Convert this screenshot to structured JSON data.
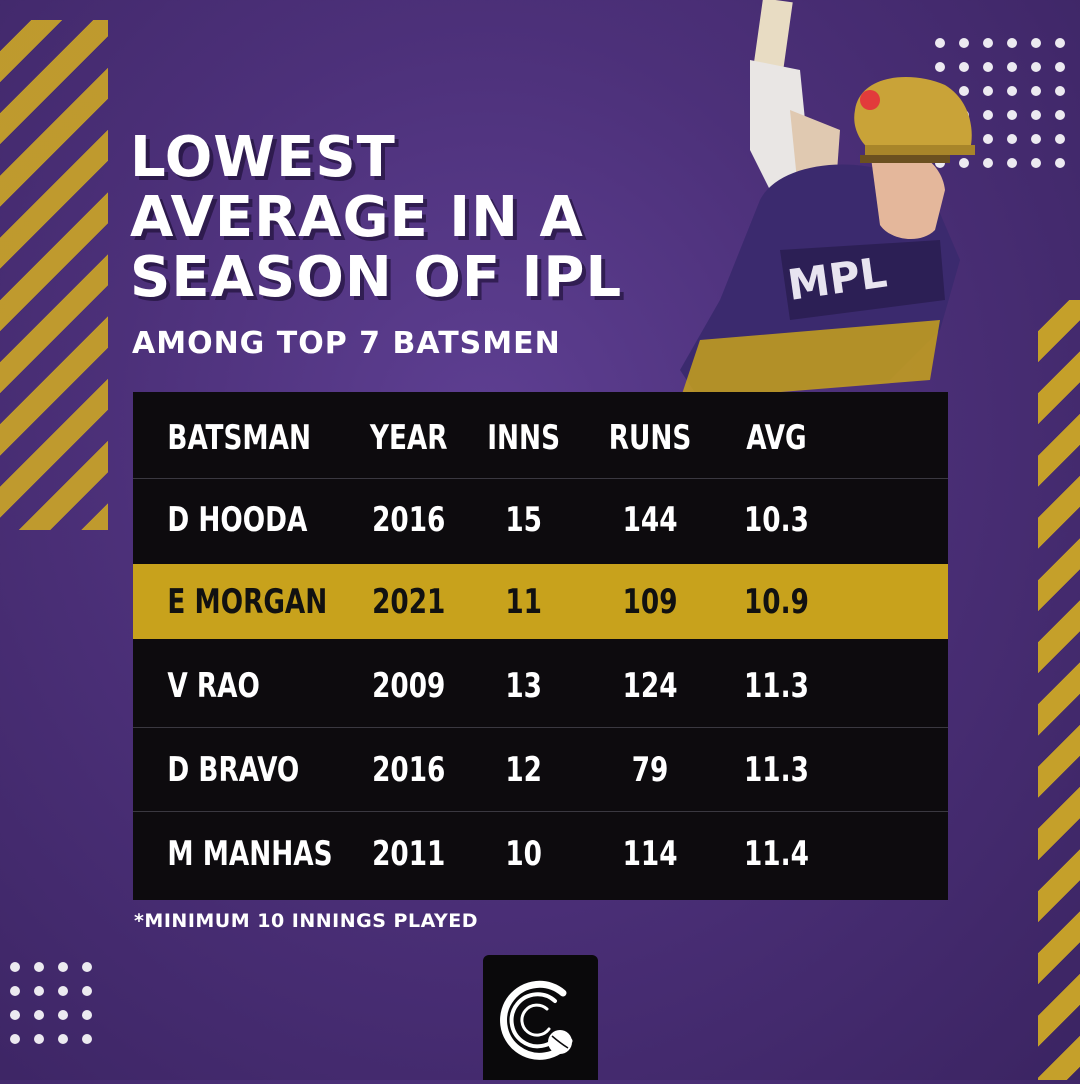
{
  "title_lines": [
    "LOWEST",
    "AVERAGE IN A",
    "SEASON OF IPL"
  ],
  "subtitle": "AMONG TOP 7 BATSMEN",
  "footnote": "*MINIMUM 10 INNINGS PLAYED",
  "colors": {
    "background": "#4c3079",
    "accent": "#c8a21c",
    "table": "#0d0b0e"
  },
  "logo_icon": "cricket-ball-logo-icon",
  "chart_data": {
    "type": "table",
    "columns": [
      "BATSMAN",
      "YEAR",
      "INNS",
      "RUNS",
      "AVG"
    ],
    "rows": [
      [
        "D HOODA",
        "2016",
        "15",
        "144",
        "10.3"
      ],
      [
        "E MORGAN",
        "2021",
        "11",
        "109",
        "10.9"
      ],
      [
        "V RAO",
        "2009",
        "13",
        "124",
        "11.3"
      ],
      [
        "D BRAVO",
        "2016",
        "12",
        "79",
        "11.3"
      ],
      [
        "M MANHAS",
        "2011",
        "10",
        "114",
        "11.4"
      ]
    ],
    "highlighted_row": 1
  }
}
